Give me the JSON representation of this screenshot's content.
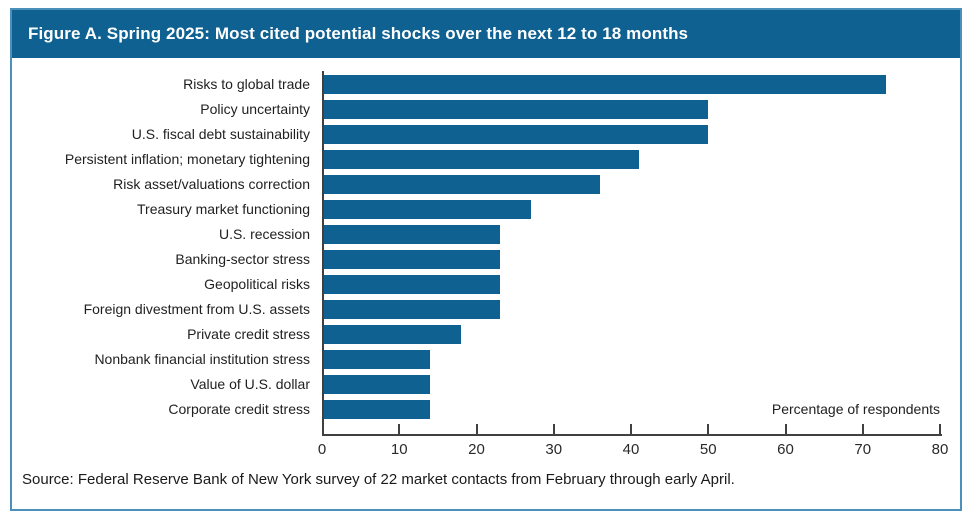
{
  "figure": {
    "title": "Figure A. Spring 2025: Most cited potential shocks over the next 12 to 18 months",
    "source": "Source: Federal Reserve Bank of New York survey of 22 market contacts from February through early April."
  },
  "chart_data": {
    "type": "bar",
    "orientation": "horizontal",
    "title": "Figure A. Spring 2025: Most cited potential shocks over the next 12 to 18 months",
    "categories": [
      "Risks to global trade",
      "Policy uncertainty",
      "U.S. fiscal debt sustainability",
      "Persistent inflation; monetary tightening",
      "Risk asset/valuations correction",
      "Treasury market functioning",
      "U.S. recession",
      "Banking-sector stress",
      "Geopolitical risks",
      "Foreign divestment from U.S. assets",
      "Private credit stress",
      "Nonbank financial institution stress",
      "Value of U.S. dollar",
      "Corporate credit stress"
    ],
    "values": [
      73,
      50,
      50,
      41,
      36,
      27,
      23,
      23,
      23,
      23,
      18,
      14,
      14,
      14
    ],
    "xlabel": "Percentage of respondents",
    "ylabel": "",
    "xlim": [
      0,
      80
    ],
    "xticks": [
      0,
      10,
      20,
      30,
      40,
      50,
      60,
      70,
      80
    ],
    "grid": false,
    "legend": false,
    "bar_color": "#0e6191"
  },
  "colors": {
    "header_bg": "#0e6191",
    "frame_border": "#4a90ba",
    "axis": "#404040"
  }
}
